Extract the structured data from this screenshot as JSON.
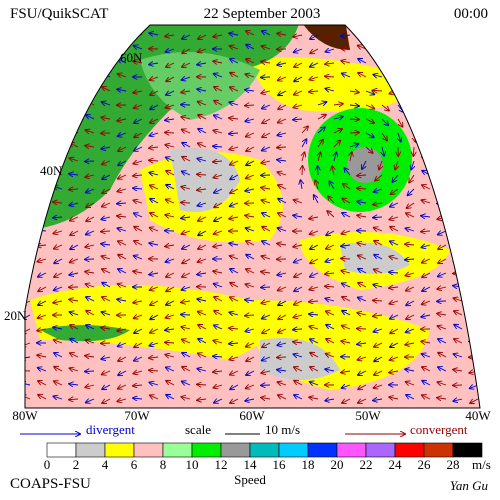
{
  "header": {
    "left": "FSU/QuikSCAT",
    "center": "22 September 2003",
    "right": "00:00"
  },
  "map": {
    "lat_labels": [
      "60N",
      "40N",
      "20N"
    ],
    "lon_labels": [
      "80W",
      "70W",
      "60W",
      "50W",
      "40W"
    ]
  },
  "legend": {
    "divergent": "divergent",
    "scale": "scale",
    "scale_value": "10 m/s",
    "convergent": "convergent"
  },
  "colorbar": {
    "labels": [
      "0",
      "2",
      "4",
      "6",
      "8",
      "10",
      "12",
      "14",
      "16",
      "18",
      "20",
      "22",
      "24",
      "26",
      "28"
    ],
    "colors": [
      "#ffffff",
      "#cccccc",
      "#ffff00",
      "#ffc0c0",
      "#99ff99",
      "#00ee00",
      "#999999",
      "#00bbbb",
      "#00ccff",
      "#0033ff",
      "#ff55ff",
      "#aa66ff",
      "#ff0000",
      "#cc3300",
      "#000000"
    ],
    "unit": "m/s",
    "title": "Speed"
  },
  "footer": {
    "left": "COAPS-FSU",
    "right": "Yan Gu"
  }
}
